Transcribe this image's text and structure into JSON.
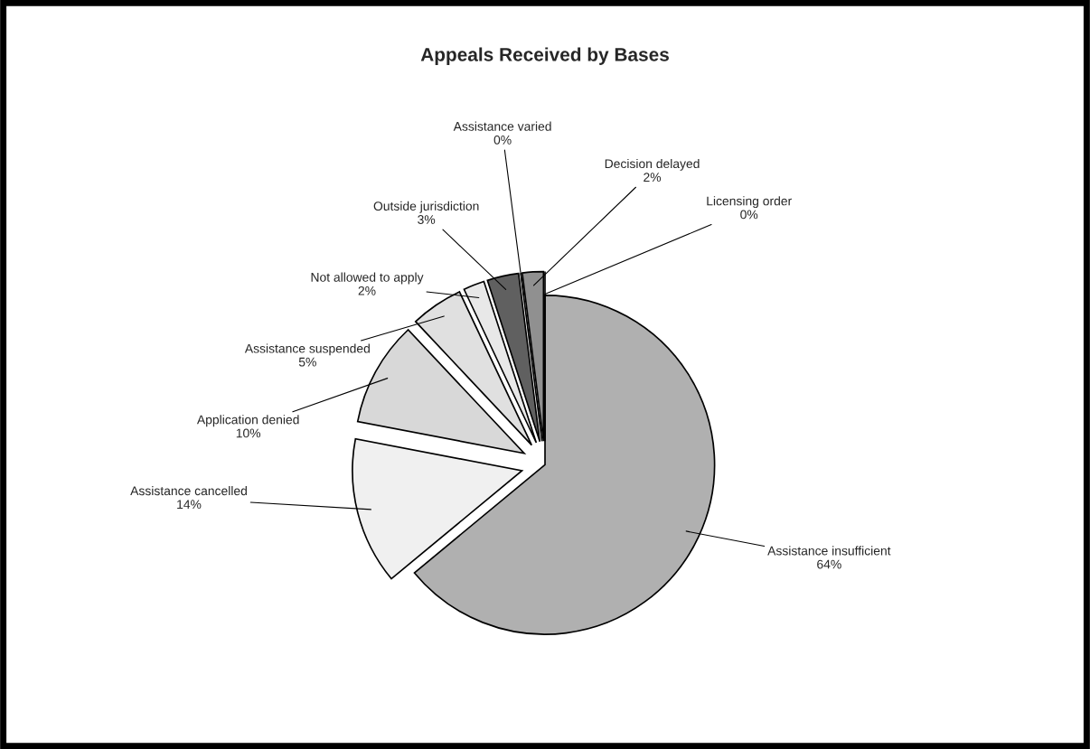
{
  "chart_data": {
    "type": "pie",
    "title": "Appeals Received by Bases",
    "categories": [
      "Assistance insufficient",
      "Assistance cancelled",
      "Application denied",
      "Assistance suspended",
      "Not allowed to apply",
      "Outside jurisdiction",
      "Assistance varied",
      "Decision delayed",
      "Licensing order"
    ],
    "values": [
      64,
      14,
      10,
      5,
      2,
      3,
      0,
      2,
      0
    ],
    "value_labels": [
      "64%",
      "14%",
      "10%",
      "5%",
      "2%",
      "3%",
      "0%",
      "2%",
      "0%"
    ],
    "colors": [
      "#b0b0b0",
      "#f0f0f0",
      "#d8d8d8",
      "#e0e0e0",
      "#e8e8e8",
      "#606060",
      "#ffffff",
      "#909090",
      "#000080"
    ],
    "legend": false
  }
}
